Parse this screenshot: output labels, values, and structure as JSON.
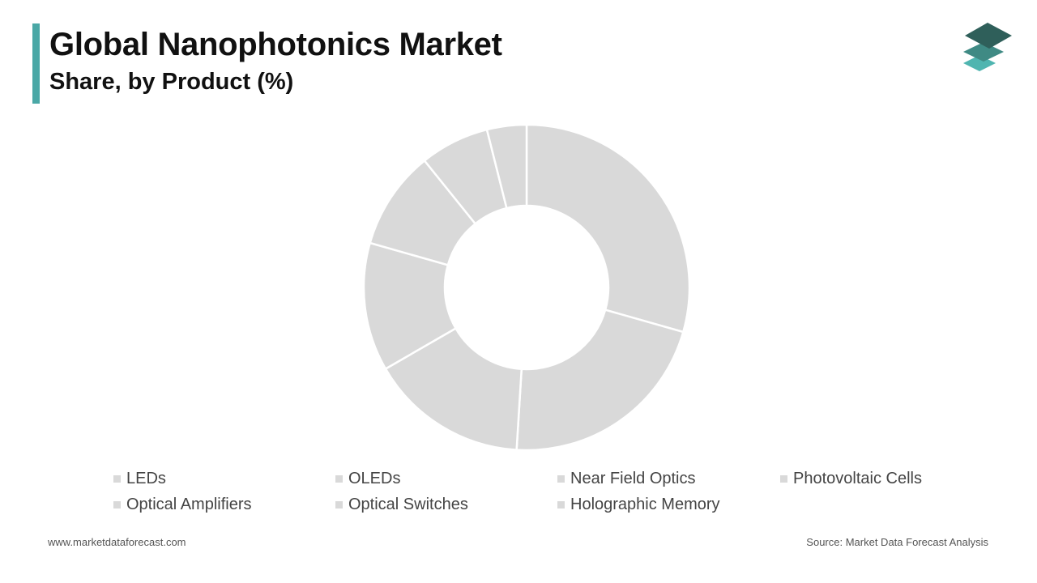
{
  "header": {
    "title": "Global Nanophotonics Market",
    "subtitle": "Share, by Product (%)"
  },
  "footer": {
    "website": "www.marketdataforecast.com",
    "source": "Source: Market Data Forecast Analysis"
  },
  "colors": {
    "accent": "#4aa8a6",
    "slice": "#d9d9d9",
    "logo_top": "#2f5f5a",
    "logo_mid": "#3f8a84",
    "logo_bottom": "#4fb5b0"
  },
  "logo": {
    "icon": "stacked-layers-icon"
  },
  "chart_data": {
    "type": "pie",
    "donut": true,
    "categories": [
      "LEDs",
      "OLEDs",
      "Near Field Optics",
      "Photovoltaic Cells",
      "Optical Amplifiers",
      "Optical Switches",
      "Holographic Memory"
    ],
    "values": [
      30,
      22,
      16,
      13,
      10,
      7,
      4
    ],
    "legend": "bottom"
  }
}
